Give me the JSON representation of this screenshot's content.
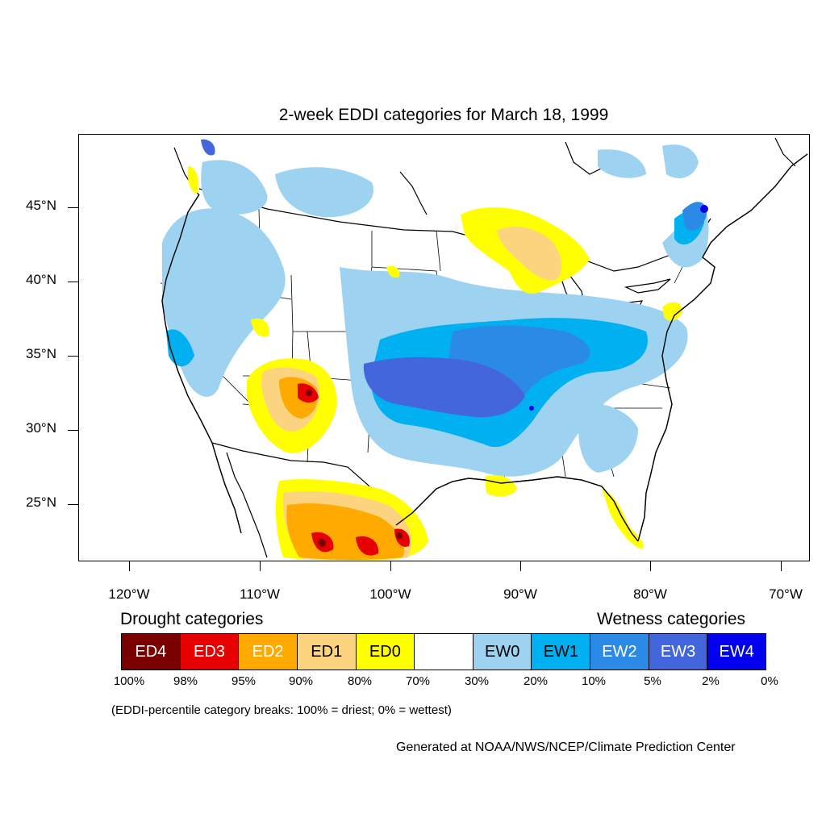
{
  "title": "2-week EDDI categories for March 18, 1999",
  "colors": {
    "ED4": "#7a0000",
    "ED3": "#e60000",
    "ED2": "#ffaa00",
    "ED1": "#fcd37f",
    "ED0": "#ffff00",
    "neutral": "#ffffff",
    "EW0": "#9dd3f0",
    "EW1": "#00b0f0",
    "EW2": "#2b8ae6",
    "EW3": "#4466dd",
    "EW4": "#0000ee"
  },
  "map": {
    "lat_labels": [
      "45°N",
      "40°N",
      "35°N",
      "30°N",
      "25°N"
    ],
    "lon_labels": [
      "120°W",
      "110°W",
      "100°W",
      "90°W",
      "80°W",
      "70°W"
    ]
  },
  "legend": {
    "drought_heading": "Drought categories",
    "wetness_heading": "Wetness categories",
    "categories": [
      {
        "label": "ED4",
        "text_color": "#ffffff"
      },
      {
        "label": "ED3",
        "text_color": "#ffffff"
      },
      {
        "label": "ED2",
        "text_color": "#ffffff"
      },
      {
        "label": "ED1",
        "text_color": "#000000"
      },
      {
        "label": "ED0",
        "text_color": "#000000"
      },
      {
        "label": "",
        "text_color": "#000000"
      },
      {
        "label": "EW0",
        "text_color": "#000000"
      },
      {
        "label": "EW1",
        "text_color": "#000000"
      },
      {
        "label": "EW2",
        "text_color": "#ffffff"
      },
      {
        "label": "EW3",
        "text_color": "#ffffff"
      },
      {
        "label": "EW4",
        "text_color": "#ffffff"
      }
    ],
    "breaks": [
      "100%",
      "98%",
      "95%",
      "90%",
      "80%",
      "70%",
      "30%",
      "20%",
      "10%",
      "5%",
      "2%",
      "0%"
    ]
  },
  "note": "(EDDI-percentile category breaks: 100% = driest; 0% = wettest)",
  "credit": "Generated at NOAA/NWS/NCEP/Climate Prediction Center"
}
